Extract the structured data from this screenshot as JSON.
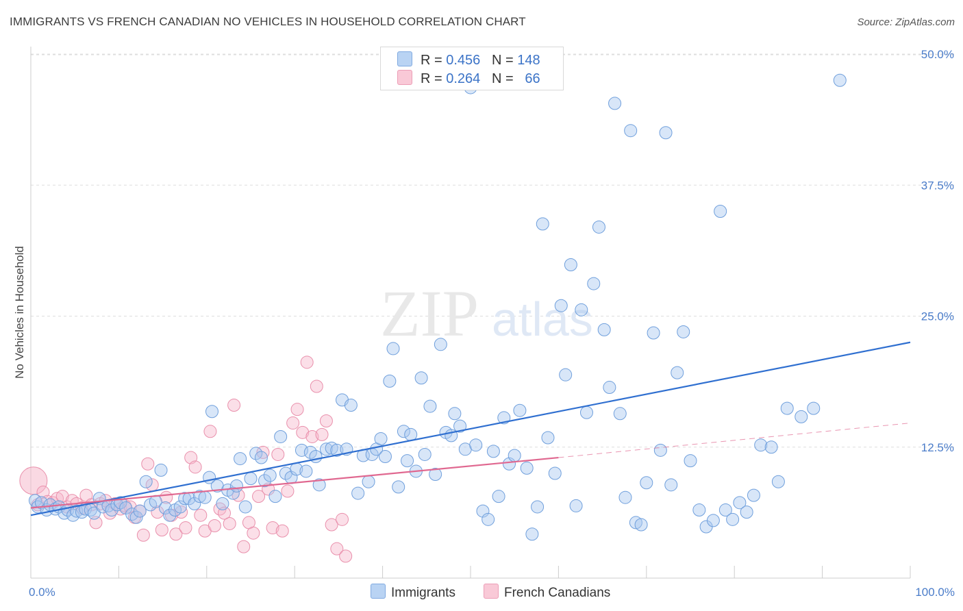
{
  "title": "IMMIGRANTS VS FRENCH CANADIAN NO VEHICLES IN HOUSEHOLD CORRELATION CHART",
  "source": "Source: ZipAtlas.com",
  "watermark": {
    "zip": "ZIP",
    "atlas": "atlas"
  },
  "legend": {
    "immigrants": {
      "r_label": "R =",
      "r": "0.456",
      "n_label": "N =",
      "n": "148"
    },
    "french": {
      "r_label": "R =",
      "r": "0.264",
      "n_label": "N =",
      "n": "66"
    }
  },
  "bottom_legend": {
    "immigrants": "Immigrants",
    "french": "French Canadians"
  },
  "colors": {
    "immigrants_fill": "#a9c8f0",
    "immigrants_stroke": "#6f9fdc",
    "immigrants_line": "#2f6fd0",
    "french_fill": "#f6b9cc",
    "french_stroke": "#e98fab",
    "french_line": "#e06890",
    "grid": "#dddddd",
    "axis_text": "#4a7cc9"
  },
  "chart_data": {
    "type": "scatter",
    "ylabel": "No Vehicles in Household",
    "xlim": [
      0,
      100
    ],
    "ylim": [
      0,
      50
    ],
    "x_tick_labels": [
      "0.0%",
      "100.0%"
    ],
    "y_ticks": [
      12.5,
      25.0,
      37.5,
      50.0
    ],
    "y_tick_labels": [
      "12.5%",
      "25.0%",
      "37.5%",
      "50.0%"
    ],
    "grid": "horizontal dashed",
    "series": [
      {
        "name": "Immigrants",
        "r": 0.456,
        "n": 148,
        "trend": {
          "x": [
            0,
            100
          ],
          "y": [
            6.0,
            22.5
          ],
          "style": "solid"
        },
        "points": [
          [
            0.5,
            7.4
          ],
          [
            0.8,
            6.8
          ],
          [
            1.2,
            7.2
          ],
          [
            1.8,
            6.5
          ],
          [
            2.2,
            7.0
          ],
          [
            2.8,
            6.6
          ],
          [
            3.2,
            6.8
          ],
          [
            3.8,
            6.2
          ],
          [
            4.2,
            6.5
          ],
          [
            4.8,
            6.0
          ],
          [
            5.2,
            6.4
          ],
          [
            5.8,
            6.3
          ],
          [
            6.2,
            6.6
          ],
          [
            6.8,
            6.5
          ],
          [
            7.2,
            6.2
          ],
          [
            7.8,
            7.6
          ],
          [
            8.2,
            6.8
          ],
          [
            8.8,
            6.9
          ],
          [
            9.2,
            6.5
          ],
          [
            9.8,
            7.0
          ],
          [
            10.2,
            7.2
          ],
          [
            10.8,
            6.7
          ],
          [
            11.5,
            6.1
          ],
          [
            12.0,
            5.8
          ],
          [
            12.4,
            6.4
          ],
          [
            13.1,
            9.2
          ],
          [
            13.6,
            7.0
          ],
          [
            14.2,
            7.3
          ],
          [
            14.8,
            10.3
          ],
          [
            15.3,
            6.7
          ],
          [
            15.8,
            6.0
          ],
          [
            16.4,
            6.5
          ],
          [
            17.0,
            6.8
          ],
          [
            17.5,
            7.6
          ],
          [
            18.0,
            7.6
          ],
          [
            18.6,
            7.1
          ],
          [
            19.2,
            7.8
          ],
          [
            19.8,
            7.7
          ],
          [
            20.3,
            9.6
          ],
          [
            20.6,
            15.9
          ],
          [
            21.2,
            8.8
          ],
          [
            21.8,
            7.1
          ],
          [
            22.4,
            8.4
          ],
          [
            23.0,
            8.1
          ],
          [
            23.4,
            8.8
          ],
          [
            23.8,
            11.4
          ],
          [
            24.4,
            6.8
          ],
          [
            25.0,
            9.5
          ],
          [
            25.6,
            11.9
          ],
          [
            26.2,
            11.5
          ],
          [
            26.6,
            9.3
          ],
          [
            27.2,
            9.8
          ],
          [
            27.8,
            7.8
          ],
          [
            28.4,
            13.5
          ],
          [
            29.0,
            10.0
          ],
          [
            29.6,
            9.6
          ],
          [
            30.2,
            10.4
          ],
          [
            30.8,
            12.2
          ],
          [
            31.3,
            10.2
          ],
          [
            31.8,
            12.0
          ],
          [
            32.4,
            11.6
          ],
          [
            32.8,
            8.9
          ],
          [
            33.6,
            12.3
          ],
          [
            34.2,
            12.4
          ],
          [
            34.8,
            12.2
          ],
          [
            35.4,
            17.0
          ],
          [
            35.9,
            12.3
          ],
          [
            36.4,
            16.5
          ],
          [
            37.2,
            8.1
          ],
          [
            37.8,
            11.7
          ],
          [
            38.4,
            9.2
          ],
          [
            38.8,
            11.8
          ],
          [
            39.3,
            12.3
          ],
          [
            39.8,
            13.3
          ],
          [
            40.3,
            11.6
          ],
          [
            40.8,
            18.8
          ],
          [
            41.2,
            21.9
          ],
          [
            41.8,
            8.7
          ],
          [
            42.4,
            14.0
          ],
          [
            42.8,
            11.2
          ],
          [
            43.2,
            13.7
          ],
          [
            43.8,
            10.2
          ],
          [
            44.4,
            19.1
          ],
          [
            44.8,
            11.8
          ],
          [
            45.4,
            16.4
          ],
          [
            46.0,
            9.9
          ],
          [
            46.6,
            22.3
          ],
          [
            47.2,
            13.9
          ],
          [
            47.8,
            13.6
          ],
          [
            48.2,
            15.7
          ],
          [
            48.8,
            14.5
          ],
          [
            49.4,
            12.3
          ],
          [
            50.0,
            46.8
          ],
          [
            50.6,
            12.7
          ],
          [
            51.4,
            6.4
          ],
          [
            52.0,
            5.6
          ],
          [
            52.6,
            12.1
          ],
          [
            53.2,
            7.8
          ],
          [
            53.8,
            15.3
          ],
          [
            54.4,
            10.9
          ],
          [
            55.0,
            11.7
          ],
          [
            55.6,
            16.0
          ],
          [
            56.4,
            10.5
          ],
          [
            57.0,
            4.2
          ],
          [
            57.6,
            6.8
          ],
          [
            58.2,
            33.8
          ],
          [
            58.8,
            13.4
          ],
          [
            59.6,
            10.0
          ],
          [
            60.3,
            26.0
          ],
          [
            60.8,
            19.4
          ],
          [
            61.4,
            29.9
          ],
          [
            62.0,
            6.9
          ],
          [
            62.6,
            25.6
          ],
          [
            63.2,
            15.8
          ],
          [
            64.0,
            28.1
          ],
          [
            64.6,
            33.5
          ],
          [
            65.2,
            23.7
          ],
          [
            65.8,
            18.2
          ],
          [
            66.4,
            45.3
          ],
          [
            67.0,
            15.7
          ],
          [
            67.6,
            7.7
          ],
          [
            68.2,
            42.7
          ],
          [
            68.8,
            5.3
          ],
          [
            69.4,
            5.1
          ],
          [
            70.0,
            9.1
          ],
          [
            70.8,
            23.4
          ],
          [
            71.6,
            12.2
          ],
          [
            72.2,
            42.5
          ],
          [
            72.8,
            8.9
          ],
          [
            73.5,
            19.6
          ],
          [
            74.2,
            23.5
          ],
          [
            75.0,
            11.2
          ],
          [
            76.0,
            6.5
          ],
          [
            76.8,
            4.9
          ],
          [
            77.6,
            5.5
          ],
          [
            78.4,
            35.0
          ],
          [
            79.0,
            6.5
          ],
          [
            79.8,
            5.6
          ],
          [
            80.6,
            7.2
          ],
          [
            81.4,
            6.3
          ],
          [
            82.2,
            7.9
          ],
          [
            83.0,
            12.7
          ],
          [
            84.2,
            12.5
          ],
          [
            85.0,
            9.2
          ],
          [
            86.0,
            16.2
          ],
          [
            87.6,
            15.4
          ],
          [
            89.0,
            16.2
          ],
          [
            92.0,
            47.5
          ]
        ]
      },
      {
        "name": "French Canadians",
        "r": 0.264,
        "n": 66,
        "trend": {
          "x": [
            0,
            60
          ],
          "y": [
            6.7,
            11.5
          ],
          "style": "solid",
          "extended_to": [
            100,
            14.8
          ],
          "extended_style": "dashed"
        },
        "points": [
          [
            0.3,
            9.3
          ],
          [
            0.8,
            7.0
          ],
          [
            1.4,
            8.2
          ],
          [
            1.9,
            7.3
          ],
          [
            2.5,
            7.2
          ],
          [
            3.0,
            7.6
          ],
          [
            3.6,
            7.8
          ],
          [
            4.1,
            6.8
          ],
          [
            4.7,
            7.4
          ],
          [
            5.2,
            7.1
          ],
          [
            5.8,
            6.7
          ],
          [
            6.3,
            7.9
          ],
          [
            6.9,
            7.0
          ],
          [
            7.4,
            5.3
          ],
          [
            7.9,
            7.1
          ],
          [
            8.5,
            7.4
          ],
          [
            9.0,
            6.2
          ],
          [
            9.6,
            7.1
          ],
          [
            10.2,
            6.6
          ],
          [
            10.7,
            6.9
          ],
          [
            11.3,
            6.8
          ],
          [
            11.8,
            5.8
          ],
          [
            12.4,
            6.4
          ],
          [
            12.8,
            4.1
          ],
          [
            13.3,
            10.9
          ],
          [
            13.8,
            8.9
          ],
          [
            14.4,
            6.3
          ],
          [
            14.9,
            4.6
          ],
          [
            15.4,
            7.7
          ],
          [
            16.0,
            6.0
          ],
          [
            16.5,
            4.2
          ],
          [
            17.1,
            6.3
          ],
          [
            17.6,
            4.8
          ],
          [
            18.2,
            11.5
          ],
          [
            18.7,
            10.6
          ],
          [
            19.3,
            6.0
          ],
          [
            19.8,
            4.5
          ],
          [
            20.4,
            14.0
          ],
          [
            20.9,
            5.0
          ],
          [
            21.5,
            6.6
          ],
          [
            22.0,
            6.2
          ],
          [
            22.6,
            5.2
          ],
          [
            23.1,
            16.5
          ],
          [
            23.6,
            7.9
          ],
          [
            24.2,
            3.0
          ],
          [
            24.8,
            5.3
          ],
          [
            25.3,
            4.3
          ],
          [
            25.9,
            7.8
          ],
          [
            26.4,
            12.0
          ],
          [
            27.0,
            8.5
          ],
          [
            27.5,
            4.8
          ],
          [
            28.1,
            11.8
          ],
          [
            28.6,
            4.5
          ],
          [
            29.2,
            8.3
          ],
          [
            29.8,
            14.8
          ],
          [
            30.3,
            16.1
          ],
          [
            30.9,
            13.9
          ],
          [
            31.4,
            20.6
          ],
          [
            32.0,
            13.5
          ],
          [
            32.5,
            18.3
          ],
          [
            33.1,
            13.7
          ],
          [
            33.6,
            15.0
          ],
          [
            34.2,
            5.1
          ],
          [
            34.8,
            2.8
          ],
          [
            35.4,
            5.6
          ],
          [
            35.8,
            2.1
          ]
        ]
      }
    ]
  }
}
